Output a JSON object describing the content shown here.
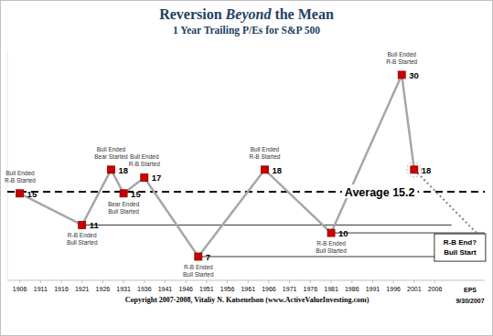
{
  "chart_data": {
    "type": "line",
    "title": "Reversion Beyond the Mean",
    "title_emphasis": "Beyond",
    "subtitle": "1 Year Trailing P/Es for S&P 500",
    "x": [
      1906,
      1921,
      1928,
      1931,
      1936,
      1949,
      1965,
      1981,
      1998,
      2001,
      2016
    ],
    "xlim": [
      1903,
      2018
    ],
    "xticks": [
      1906,
      1911,
      1916,
      1921,
      1926,
      1931,
      1936,
      1941,
      1946,
      1951,
      1956,
      1961,
      1966,
      1971,
      1976,
      1981,
      1986,
      1991,
      1996,
      2001,
      2006
    ],
    "ylim": [
      4,
      33
    ],
    "tick_labels": "x",
    "grid": false,
    "series": [
      {
        "color": "#a6a6a6",
        "marker": "square",
        "line_style": "solid",
        "data_labels": true,
        "values": [
          15,
          11,
          18,
          15,
          17,
          7,
          18,
          10,
          30,
          18,
          null
        ]
      },
      {
        "color": "#a6a6a6",
        "marker": "none",
        "line_style": "dotted",
        "data_labels": false,
        "values": [
          null,
          null,
          null,
          null,
          null,
          null,
          null,
          null,
          null,
          18,
          10
        ]
      }
    ],
    "point_notes": [
      [
        "Bull Ended",
        "R-B Started"
      ],
      [
        "R-B Ended",
        "Bull Started"
      ],
      [
        "Bull Ended",
        "Bear Started"
      ],
      [
        "Bear Ended",
        "Bull Started"
      ],
      [
        "Bull Ended",
        "R-B Started"
      ],
      [
        "R-B Ended",
        "Bull Started"
      ],
      [
        "Bull Ended",
        "R-B Started"
      ],
      [
        "R-B Ended",
        "Bull Started"
      ],
      [
        "Bull Ended",
        "R-B Started"
      ],
      null,
      null
    ],
    "reference_lines": [
      {
        "value": 15.2,
        "from": 1903,
        "to": 2018,
        "label": "Average 15.2",
        "line_style": "dashed"
      },
      {
        "value": 11,
        "from": 1921,
        "to": 2010,
        "line_style": "solid"
      },
      {
        "value": 10,
        "from": 1981,
        "to": 2018,
        "line_style": "solid"
      },
      {
        "value": 7,
        "from": 1949,
        "to": 2018,
        "line_style": "solid"
      }
    ],
    "end_note": [
      "R-B End?",
      "Bull Start"
    ],
    "axis_note": [
      "EPS",
      "9/30/2007"
    ],
    "copyright": "Copyright 2007-2008, Vitaliy N. Katsenelson (www.ActiveValueInvesting.com)"
  }
}
